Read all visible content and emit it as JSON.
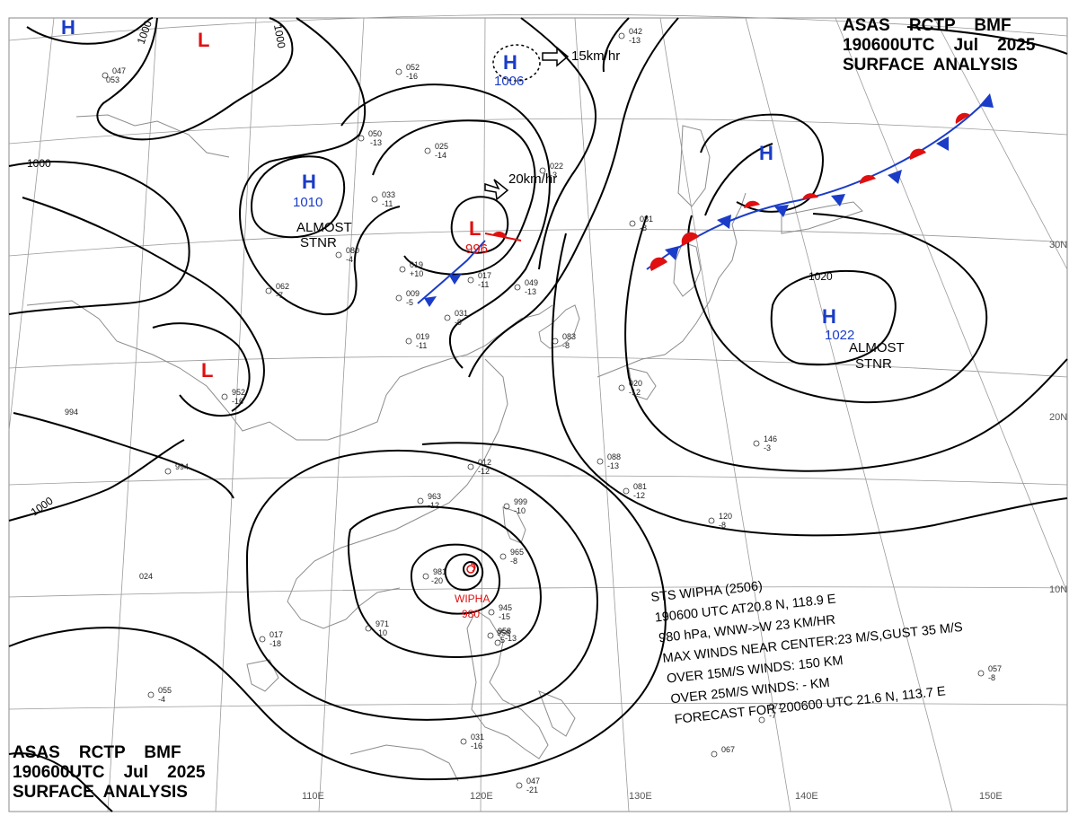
{
  "header_top": {
    "line1": "ASAS    RCTP    BMF",
    "line2": "190600UTC    Jul    2025",
    "line3": "SURFACE  ANALYSIS"
  },
  "header_bottom": {
    "line1": "ASAS    RCTP    BMF",
    "line2": "190600UTC    Jul    2025",
    "line3": "SURFACE  ANALYSIS"
  },
  "colors": {
    "high": "#1a3cc8",
    "low": "#e01010",
    "isobar": "#000000",
    "grid": "#9a9a9a",
    "coast": "#8c8c8c"
  },
  "grid_labels": {
    "lon": [
      "110E",
      "120E",
      "130E",
      "140E",
      "150E"
    ],
    "lat": [
      "30N",
      "20N",
      "10N"
    ]
  },
  "systems": [
    {
      "type": "H",
      "label": "H",
      "pressure": ""
    },
    {
      "type": "L",
      "label": "L",
      "pressure": ""
    },
    {
      "type": "H",
      "label": "H",
      "pressure": "1006",
      "motion": "15km/hr"
    },
    {
      "type": "H",
      "label": "H",
      "pressure": "1010",
      "note1": "ALMOST",
      "note2": "STNR"
    },
    {
      "type": "L",
      "label": "L",
      "pressure": "996",
      "motion": "20km/hr"
    },
    {
      "type": "H",
      "label": "H",
      "pressure": ""
    },
    {
      "type": "H",
      "label": "H",
      "pressure": "1022",
      "note1": "ALMOST",
      "note2": "STNR"
    },
    {
      "type": "L",
      "label": "L",
      "pressure": ""
    },
    {
      "type": "TS",
      "label": "WIPHA",
      "pressure": "980"
    }
  ],
  "isobar_labels": [
    "1000",
    "1000",
    "1000",
    "1000",
    "1020"
  ],
  "typhoon_info": [
    "STS  WIPHA  (2506)",
    "190600 UTC  AT20.8 N, 118.9 E",
    "980 hPa, WNW->W  23 KM/HR",
    "MAX WINDS NEAR CENTER:23 M/S,GUST 35 M/S",
    "OVER 15M/S WINDS: 150 KM",
    "OVER 25M/S WINDS: - KM",
    "FORECAST FOR 200600 UTC 21.6 N, 113.7 E"
  ],
  "stations": [
    "047",
    "053",
    "052",
    "-16",
    "050",
    "-13",
    "025",
    "-14",
    "022",
    "-3",
    "017",
    "-11",
    "019",
    "+10",
    "009",
    "-5",
    "031",
    "-9",
    "049",
    "-13",
    "083",
    "-8",
    "012",
    "-12",
    "020",
    "-12",
    "963",
    "-12",
    "999",
    "-10",
    "965",
    "-8",
    "981",
    "-20",
    "945",
    "-15",
    "958",
    "-5",
    "971",
    "-10",
    "017",
    "-18",
    "055",
    "-4",
    "031",
    "-16",
    "047",
    "-21",
    "042",
    "-13",
    "081",
    "-8",
    "088",
    "-13",
    "081",
    "-12",
    "120",
    "-8",
    "146",
    "-3",
    "057",
    "-8",
    "067",
    "071",
    "-7",
    "958",
    "-13",
    "994",
    "994",
    "024",
    "952",
    "-16",
    "019",
    "-11",
    "062",
    "-7",
    "080",
    "-4",
    "033",
    "-11"
  ]
}
